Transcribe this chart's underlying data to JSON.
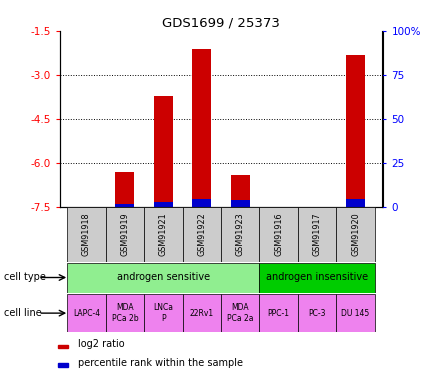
{
  "title": "GDS1699 / 25373",
  "samples": [
    "GSM91918",
    "GSM91919",
    "GSM91921",
    "GSM91922",
    "GSM91923",
    "GSM91916",
    "GSM91917",
    "GSM91920"
  ],
  "log2_ratios": [
    null,
    -6.3,
    -3.7,
    -2.1,
    -6.4,
    null,
    null,
    -2.3
  ],
  "percentile_ranks": [
    null,
    2,
    3,
    5,
    4,
    null,
    null,
    5
  ],
  "ylim": [
    -7.5,
    -1.5
  ],
  "yticks": [
    -7.5,
    -6.0,
    -4.5,
    -3.0,
    -1.5
  ],
  "y_right_ticks": [
    0,
    25,
    50,
    75,
    100
  ],
  "y_right_positions": [
    -7.5,
    -6.0,
    -4.5,
    -3.0,
    -1.5
  ],
  "cell_type_sensitive": "androgen sensitive",
  "cell_type_insensitive": "androgen insensitive",
  "cell_lines": [
    "LAPC-4",
    "MDA\nPCa 2b",
    "LNCa\nP",
    "22Rv1",
    "MDA\nPCa 2a",
    "PPC-1",
    "PC-3",
    "DU 145"
  ],
  "n_sensitive": 5,
  "n_insensitive": 3,
  "color_sensitive": "#90ee90",
  "color_insensitive": "#00cc00",
  "color_cell_line": "#ee82ee",
  "color_sample_bg": "#cccccc",
  "color_bar_red": "#cc0000",
  "color_bar_blue": "#0000cc",
  "bar_width": 0.5
}
